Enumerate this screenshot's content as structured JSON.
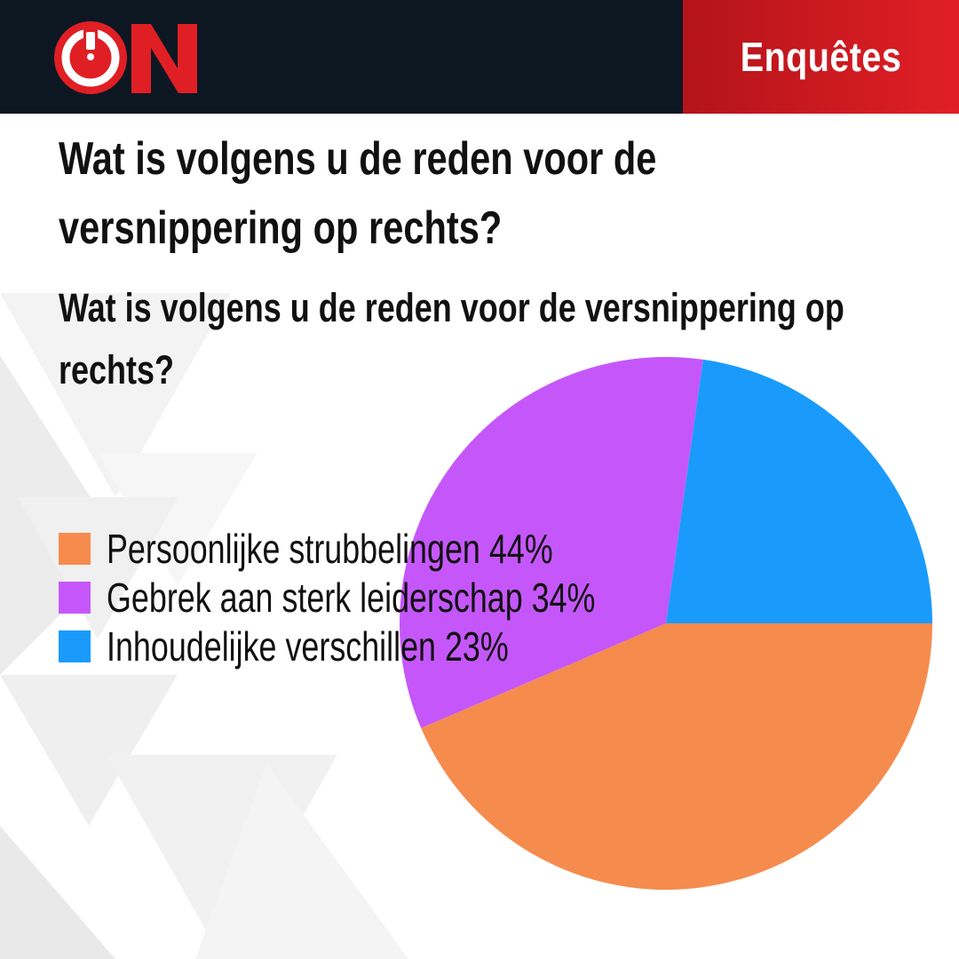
{
  "brand": {
    "logo_text": "ON",
    "section": "Enquêtes"
  },
  "title": "Wat is volgens u de reden voor de versnippering op rechts?",
  "subtitle": "Wat is volgens u de reden voor de versnippering op rechts?",
  "colors": {
    "header_bg": "#0d1722",
    "accent_red": "#e01f25"
  },
  "chart_data": {
    "type": "pie",
    "title": "Wat is volgens u de reden voor de versnippering op rechts?",
    "categories": [
      "Persoonlijke strubbelingen",
      "Gebrek aan sterk leiderschap",
      "Inhoudelijke verschillen"
    ],
    "values": [
      44,
      34,
      23
    ],
    "unit": "%",
    "colors": [
      "#f68b4e",
      "#c557fa",
      "#1a9bfc"
    ],
    "legend_labels": [
      "Persoonlijke strubbelingen 44%",
      "Gebrek aan sterk leiderschap 34%",
      "Inhoudelijke verschillen 23%"
    ],
    "legend_position": "left",
    "start_angle_deg": 0,
    "direction": "clockwise"
  }
}
